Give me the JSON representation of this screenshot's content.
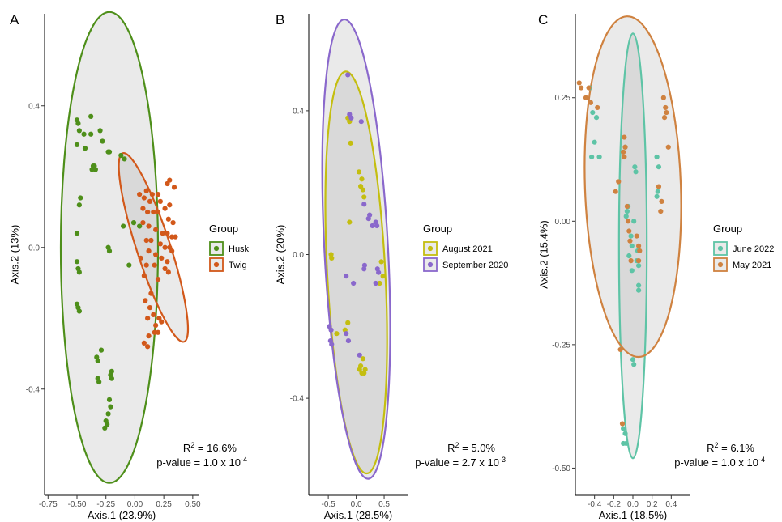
{
  "chart_data": [
    {
      "type": "scatter",
      "panel": "A",
      "xlabel": "Axis.1 (23.9%)",
      "ylabel": "Axis.2 (13%)",
      "xlim": [
        -0.78,
        0.55
      ],
      "ylim": [
        -0.7,
        0.66
      ],
      "xticks": [
        -0.75,
        -0.5,
        -0.25,
        0.0,
        0.25,
        0.5
      ],
      "xtick_labels": [
        "-0.75",
        "-0.50",
        "-0.25",
        "0.00",
        "0.25",
        "0.50"
      ],
      "yticks": [
        -0.4,
        0.0,
        0.4
      ],
      "ytick_labels": [
        "-0.4",
        "0.0",
        "0.4"
      ],
      "legend_title": "Group",
      "legend_position": "right",
      "stat_r2": "16.6%",
      "stat_p_mantissa": "1.0",
      "stat_p_exp": "-4",
      "series": [
        {
          "name": "Husk",
          "color": "#4e8f1a",
          "ellipse": {
            "cx": -0.22,
            "cy": 0.0,
            "rx": 0.42,
            "ry": 0.665
          },
          "points": [
            [
              -0.5,
              0.36
            ],
            [
              -0.49,
              0.35
            ],
            [
              -0.38,
              0.37
            ],
            [
              -0.48,
              0.33
            ],
            [
              -0.44,
              0.32
            ],
            [
              -0.38,
              0.32
            ],
            [
              -0.3,
              0.33
            ],
            [
              -0.28,
              0.3
            ],
            [
              -0.5,
              0.29
            ],
            [
              -0.43,
              0.28
            ],
            [
              -0.23,
              0.27
            ],
            [
              -0.22,
              0.27
            ],
            [
              -0.12,
              0.26
            ],
            [
              -0.09,
              0.25
            ],
            [
              -0.35,
              0.23
            ],
            [
              -0.36,
              0.23
            ],
            [
              -0.37,
              0.22
            ],
            [
              -0.34,
              0.22
            ],
            [
              -0.47,
              0.14
            ],
            [
              -0.48,
              0.12
            ],
            [
              -0.01,
              0.07
            ],
            [
              -0.1,
              0.06
            ],
            [
              0.04,
              0.06
            ],
            [
              -0.5,
              0.04
            ],
            [
              -0.23,
              0.0
            ],
            [
              -0.22,
              -0.01
            ],
            [
              -0.5,
              -0.04
            ],
            [
              -0.49,
              -0.06
            ],
            [
              -0.48,
              -0.07
            ],
            [
              -0.05,
              -0.05
            ],
            [
              -0.5,
              -0.16
            ],
            [
              -0.49,
              -0.17
            ],
            [
              -0.48,
              -0.18
            ],
            [
              -0.29,
              -0.29
            ],
            [
              -0.33,
              -0.31
            ],
            [
              -0.32,
              -0.32
            ],
            [
              -0.32,
              -0.37
            ],
            [
              -0.31,
              -0.38
            ],
            [
              -0.2,
              -0.35
            ],
            [
              -0.21,
              -0.36
            ],
            [
              -0.2,
              -0.37
            ],
            [
              -0.22,
              -0.43
            ],
            [
              -0.21,
              -0.45
            ],
            [
              -0.23,
              -0.47
            ],
            [
              -0.25,
              -0.49
            ],
            [
              -0.24,
              -0.5
            ],
            [
              -0.26,
              -0.51
            ]
          ]
        },
        {
          "name": "Twig",
          "color": "#d2581a",
          "ellipse": {
            "cx": 0.16,
            "cy": 0.0,
            "rx": 0.145,
            "ry": 0.28,
            "angle": -18
          },
          "points": [
            [
              0.3,
              0.19
            ],
            [
              0.28,
              0.18
            ],
            [
              0.34,
              0.17
            ],
            [
              0.1,
              0.16
            ],
            [
              0.15,
              0.15
            ],
            [
              0.2,
              0.15
            ],
            [
              0.04,
              0.15
            ],
            [
              0.08,
              0.14
            ],
            [
              0.13,
              0.13
            ],
            [
              0.22,
              0.13
            ],
            [
              0.3,
              0.12
            ],
            [
              0.26,
              0.11
            ],
            [
              0.07,
              0.11
            ],
            [
              0.11,
              0.1
            ],
            [
              0.16,
              0.1
            ],
            [
              0.2,
              0.1
            ],
            [
              0.29,
              0.08
            ],
            [
              0.33,
              0.07
            ],
            [
              0.07,
              0.07
            ],
            [
              0.12,
              0.06
            ],
            [
              0.18,
              0.05
            ],
            [
              0.24,
              0.04
            ],
            [
              0.28,
              0.04
            ],
            [
              0.32,
              0.03
            ],
            [
              0.35,
              0.03
            ],
            [
              0.1,
              0.02
            ],
            [
              0.14,
              0.02
            ],
            [
              0.22,
              0.01
            ],
            [
              0.26,
              0.0
            ],
            [
              0.3,
              0.0
            ],
            [
              0.32,
              -0.01
            ],
            [
              0.12,
              -0.01
            ],
            [
              0.18,
              -0.02
            ],
            [
              0.23,
              -0.03
            ],
            [
              0.28,
              -0.04
            ],
            [
              0.05,
              -0.03
            ],
            [
              0.1,
              -0.05
            ],
            [
              0.17,
              -0.05
            ],
            [
              0.26,
              -0.06
            ],
            [
              0.29,
              -0.07
            ],
            [
              0.08,
              -0.08
            ],
            [
              0.2,
              -0.09
            ],
            [
              0.14,
              -0.13
            ],
            [
              0.09,
              -0.15
            ],
            [
              0.13,
              -0.17
            ],
            [
              0.16,
              -0.19
            ],
            [
              0.11,
              -0.2
            ],
            [
              0.21,
              -0.2
            ],
            [
              0.18,
              -0.22
            ],
            [
              0.23,
              -0.21
            ],
            [
              0.2,
              -0.24
            ],
            [
              0.17,
              -0.24
            ],
            [
              0.12,
              -0.25
            ],
            [
              0.08,
              -0.27
            ],
            [
              0.11,
              -0.28
            ]
          ]
        }
      ]
    },
    {
      "type": "scatter",
      "panel": "B",
      "xlabel": "Axis.1 (28.5%)",
      "ylabel": "Axis.2 (20%)",
      "xlim": [
        -0.85,
        0.92
      ],
      "ylim": [
        -0.67,
        0.67
      ],
      "xticks": [
        -0.5,
        0.0,
        0.5
      ],
      "xtick_labels": [
        "-0.5",
        "0.0",
        "0.5"
      ],
      "yticks": [
        -0.4,
        0.0,
        0.4
      ],
      "ytick_labels": [
        "-0.4",
        "0.0",
        "0.4"
      ],
      "legend_title": "Group",
      "legend_position": "right",
      "stat_r2": "5.0%",
      "stat_p_mantissa": "2.7",
      "stat_p_exp": "-3",
      "series": [
        {
          "name": "August 2021",
          "color": "#c4be10",
          "ellipse": {
            "cx": 0.0,
            "cy": -0.05,
            "rx": 0.52,
            "ry": 0.56,
            "angle": -3
          },
          "points": [
            [
              -0.15,
              0.38
            ],
            [
              -0.12,
              0.37
            ],
            [
              -0.1,
              0.31
            ],
            [
              0.05,
              0.23
            ],
            [
              0.1,
              0.21
            ],
            [
              0.08,
              0.19
            ],
            [
              0.12,
              0.18
            ],
            [
              0.14,
              0.16
            ],
            [
              -0.12,
              0.09
            ],
            [
              -0.45,
              0.0
            ],
            [
              -0.44,
              -0.01
            ],
            [
              -0.35,
              -0.22
            ],
            [
              -0.2,
              -0.21
            ],
            [
              -0.15,
              -0.19
            ],
            [
              0.45,
              -0.02
            ],
            [
              0.48,
              -0.06
            ],
            [
              0.42,
              -0.08
            ],
            [
              0.12,
              -0.29
            ],
            [
              0.16,
              -0.32
            ],
            [
              0.08,
              -0.31
            ],
            [
              0.14,
              -0.33
            ],
            [
              0.1,
              -0.33
            ],
            [
              0.06,
              -0.32
            ]
          ]
        },
        {
          "name": "September 2020",
          "color": "#8a68cc",
          "ellipse": {
            "cx": 0.0,
            "cy": 0.015,
            "rx": 0.57,
            "ry": 0.64,
            "angle": -3
          },
          "points": [
            [
              -0.15,
              0.5
            ],
            [
              -0.12,
              0.39
            ],
            [
              -0.09,
              0.38
            ],
            [
              0.09,
              0.37
            ],
            [
              0.14,
              0.14
            ],
            [
              0.24,
              0.11
            ],
            [
              0.22,
              0.1
            ],
            [
              0.35,
              0.09
            ],
            [
              0.37,
              0.08
            ],
            [
              0.29,
              0.08
            ],
            [
              -0.18,
              -0.06
            ],
            [
              0.15,
              -0.03
            ],
            [
              0.14,
              -0.04
            ],
            [
              0.38,
              -0.04
            ],
            [
              0.4,
              -0.05
            ],
            [
              0.35,
              -0.08
            ],
            [
              -0.05,
              -0.08
            ],
            [
              -0.48,
              -0.2
            ],
            [
              -0.45,
              -0.21
            ],
            [
              -0.46,
              -0.24
            ],
            [
              -0.44,
              -0.25
            ],
            [
              -0.18,
              -0.22
            ],
            [
              -0.14,
              -0.24
            ],
            [
              0.06,
              -0.28
            ]
          ]
        }
      ]
    },
    {
      "type": "scatter",
      "panel": "C",
      "xlabel": "Axis.1 (18.5%)",
      "ylabel": "Axis.2 (15.4%)",
      "xlim": [
        -0.6,
        0.6
      ],
      "ylim": [
        -0.555,
        0.42
      ],
      "xticks": [
        -0.4,
        -0.2,
        0.0,
        0.2,
        0.4
      ],
      "xtick_labels": [
        "-0.4",
        "-0.2",
        "0.0",
        "0.2",
        "0.4"
      ],
      "yticks": [
        -0.5,
        -0.25,
        0.0,
        0.25
      ],
      "ytick_labels": [
        "-0.50",
        "-0.25",
        "0.00",
        "0.25"
      ],
      "legend_title": "Group",
      "legend_position": "right",
      "stat_r2": "6.1%",
      "stat_p_mantissa": "1.0",
      "stat_p_exp": "-4",
      "series": [
        {
          "name": "June 2022",
          "color": "#5ec4a6",
          "ellipse": {
            "cx": 0.0,
            "cy": -0.05,
            "rx": 0.145,
            "ry": 0.43
          },
          "points": [
            [
              -0.45,
              0.27
            ],
            [
              -0.42,
              0.22
            ],
            [
              -0.38,
              0.21
            ],
            [
              -0.4,
              0.16
            ],
            [
              -0.43,
              0.13
            ],
            [
              -0.35,
              0.13
            ],
            [
              -0.08,
              0.15
            ],
            [
              0.02,
              0.11
            ],
            [
              0.03,
              0.1
            ],
            [
              -0.05,
              0.03
            ],
            [
              -0.06,
              0.02
            ],
            [
              0.25,
              0.13
            ],
            [
              0.27,
              0.11
            ],
            [
              0.26,
              0.06
            ],
            [
              0.25,
              0.05
            ],
            [
              -0.07,
              0.01
            ],
            [
              0.01,
              0.0
            ],
            [
              -0.02,
              -0.03
            ],
            [
              -0.01,
              -0.05
            ],
            [
              0.05,
              -0.06
            ],
            [
              -0.04,
              -0.07
            ],
            [
              0.04,
              -0.08
            ],
            [
              0.06,
              -0.09
            ],
            [
              -0.01,
              -0.1
            ],
            [
              0.06,
              -0.13
            ],
            [
              0.06,
              -0.14
            ],
            [
              0.0,
              -0.28
            ],
            [
              0.01,
              -0.29
            ],
            [
              -0.1,
              -0.42
            ],
            [
              -0.08,
              -0.43
            ],
            [
              -0.1,
              -0.45
            ],
            [
              -0.07,
              -0.45
            ]
          ]
        },
        {
          "name": "May 2021",
          "color": "#cf8240",
          "ellipse": {
            "cx": 0.0,
            "cy": 0.07,
            "rx": 0.5,
            "ry": 0.345,
            "angle": -2
          },
          "points": [
            [
              -0.56,
              0.28
            ],
            [
              -0.54,
              0.27
            ],
            [
              -0.46,
              0.27
            ],
            [
              -0.49,
              0.25
            ],
            [
              -0.44,
              0.24
            ],
            [
              -0.37,
              0.23
            ],
            [
              0.32,
              0.25
            ],
            [
              0.34,
              0.23
            ],
            [
              0.35,
              0.22
            ],
            [
              0.33,
              0.21
            ],
            [
              0.37,
              0.15
            ],
            [
              -0.09,
              0.17
            ],
            [
              -0.08,
              0.15
            ],
            [
              -0.1,
              0.14
            ],
            [
              -0.09,
              0.13
            ],
            [
              -0.15,
              0.08
            ],
            [
              -0.18,
              0.06
            ],
            [
              0.27,
              0.07
            ],
            [
              0.3,
              0.04
            ],
            [
              0.29,
              0.02
            ],
            [
              -0.06,
              0.03
            ],
            [
              -0.05,
              0.0
            ],
            [
              -0.04,
              -0.02
            ],
            [
              0.04,
              -0.03
            ],
            [
              -0.03,
              -0.04
            ],
            [
              0.06,
              -0.05
            ],
            [
              0.07,
              -0.06
            ],
            [
              -0.02,
              -0.08
            ],
            [
              0.06,
              -0.08
            ],
            [
              -0.13,
              -0.26
            ],
            [
              -0.11,
              -0.41
            ]
          ]
        }
      ]
    }
  ]
}
